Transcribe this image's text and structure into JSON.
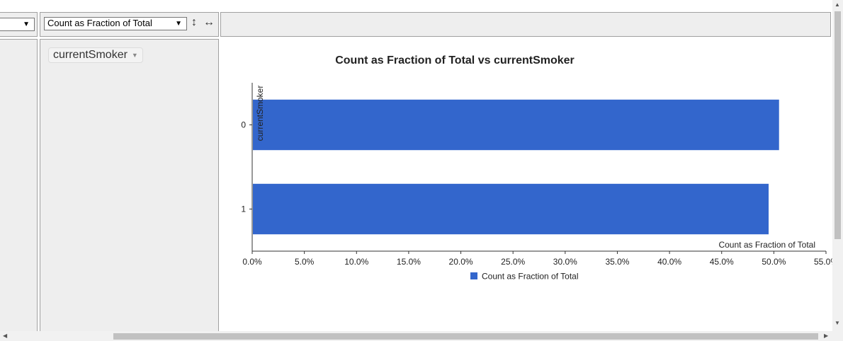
{
  "toolbar": {
    "left_select_value": "",
    "aggregator_select_value": "Count as Fraction of Total",
    "sort_rows_icon": "vertical-arrows-icon",
    "sort_cols_icon": "horizontal-arrows-icon"
  },
  "row_fields": [
    {
      "label": "currentSmoker"
    }
  ],
  "chart_data": {
    "type": "bar",
    "orientation": "horizontal",
    "title": "Count as Fraction of Total vs currentSmoker",
    "categories": [
      "0",
      "1"
    ],
    "series": [
      {
        "name": "Count as Fraction of Total",
        "values": [
          50.5,
          49.5
        ],
        "color": "#3366cc"
      }
    ],
    "xlabel": "Count as Fraction of Total",
    "ylabel": "currentSmoker",
    "xlim": [
      0,
      55
    ],
    "x_ticks": [
      "0.0%",
      "5.0%",
      "10.0%",
      "15.0%",
      "20.0%",
      "25.0%",
      "30.0%",
      "35.0%",
      "40.0%",
      "45.0%",
      "50.0%",
      "55.0%"
    ],
    "legend_position": "bottom",
    "grid": false
  }
}
